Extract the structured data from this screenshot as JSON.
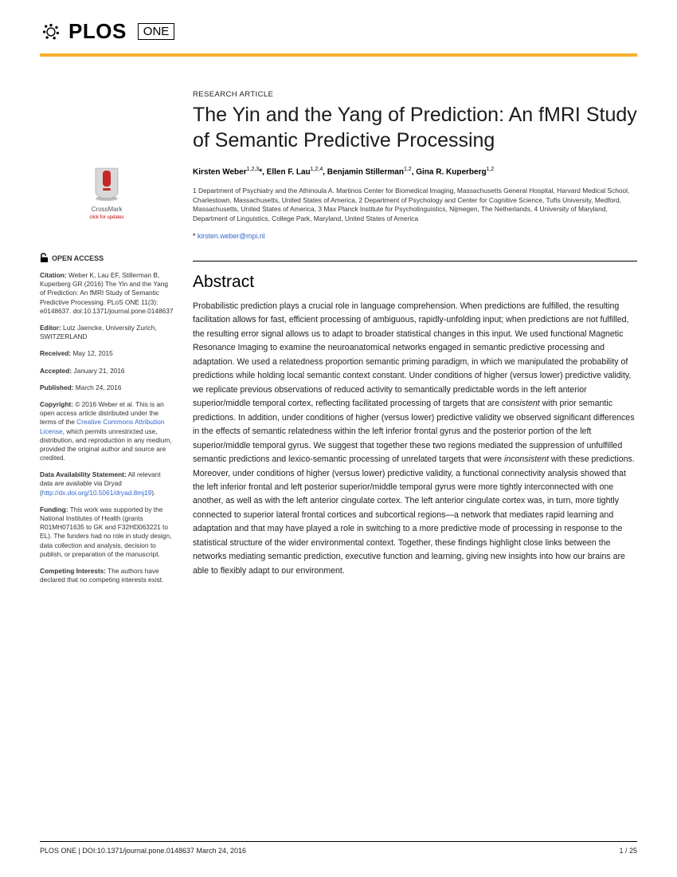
{
  "journal": {
    "publisher": "PLOS",
    "name": "ONE"
  },
  "accent_color": "#f8af2d",
  "article_type": "RESEARCH ARTICLE",
  "title": "The Yin and the Yang of Prediction: An fMRI Study of Semantic Predictive Processing",
  "authors_html": "Kirsten Weber<sup>1,2,3</sup>*, Ellen F. Lau<sup>1,2,4</sup>, Benjamin Stillerman<sup>1,2</sup>, Gina R. Kuperberg<sup>1,2</sup>",
  "affiliations": "1 Department of Psychiatry and the Athinoula A. Martinos Center for Biomedical Imaging, Massachusetts General Hospital, Harvard Medical School, Charlestown, Massachusetts, United States of America, 2 Department of Psychology and Center for Cognitive Science, Tufts University, Medford, Massachusetts, United States of America, 3 Max Planck Institute for Psycholinguistics, Nijmegen, The Netherlands, 4 University of Maryland, Department of Linguistics, College Park, Maryland, United States of America",
  "corr_prefix": "* ",
  "corr_email": "kirsten.weber@mpi.nl",
  "abstract_heading": "Abstract",
  "abstract_html": "Probabilistic prediction plays a crucial role in language comprehension. When predictions are fulfilled, the resulting facilitation allows for fast, efficient processing of ambiguous, rapidly-unfolding input; when predictions are not fulfilled, the resulting error signal allows us to adapt to broader statistical changes in this input. We used functional Magnetic Resonance Imaging to examine the neuroanatomical networks engaged in semantic predictive processing and adaptation. We used a relatedness proportion semantic priming paradigm, in which we manipulated the probability of predictions while holding local semantic context constant. Under conditions of higher (versus lower) predictive validity, we replicate previous observations of reduced activity to semantically predictable words in the left anterior superior/middle temporal cortex, reflecting facilitated processing of targets that are <em>consistent</em> with prior semantic predictions. In addition, under conditions of higher (versus lower) predictive validity we observed significant differences in the effects of semantic relatedness within the left inferior frontal gyrus and the posterior portion of the left superior/middle temporal gyrus. We suggest that together these two regions mediated the suppression of unfulfilled semantic predictions and lexico-semantic processing of unrelated targets that were <em>inconsistent</em> with these predictions. Moreover, under conditions of higher (versus lower) predictive validity, a functional connectivity analysis showed that the left inferior frontal and left posterior superior/middle temporal gyrus were more tightly interconnected with one another, as well as with the left anterior cingulate cortex. The left anterior cingulate cortex was, in turn, more tightly connected to superior lateral frontal cortices and subcortical regions—a network that mediates rapid learning and adaptation and that may have played a role in switching to a more predictive mode of processing in response to the statistical structure of the wider environmental context. Together, these findings highlight close links between the networks mediating semantic prediction, executive function and learning, giving new insights into how our brains are able to flexibly adapt to our environment.",
  "sidebar": {
    "crossmark_label": "CrossMark",
    "crossmark_sub": "click for updates",
    "open_access": "OPEN ACCESS",
    "citation_label": "Citation:",
    "citation_text": " Weber K, Lau EF, Stillerman B, Kuperberg GR (2016) The Yin and the Yang of Prediction: An fMRI Study of Semantic Predictive Processing. PLoS ONE 11(3): e0148637. doi:10.1371/journal.pone.0148637",
    "editor_label": "Editor:",
    "editor_text": " Lutz Jaencke, University Zurich, SWITZERLAND",
    "received_label": "Received:",
    "received_text": " May 12, 2015",
    "accepted_label": "Accepted:",
    "accepted_text": " January 21, 2016",
    "published_label": "Published:",
    "published_text": " March 24, 2016",
    "copyright_label": "Copyright:",
    "copyright_text_1": " © 2016 Weber et al. This is an open access article distributed under the terms of the ",
    "copyright_link": "Creative Commons Attribution License",
    "copyright_text_2": ", which permits unrestricted use, distribution, and reproduction in any medium, provided the original author and source are credited.",
    "data_label": "Data Availability Statement:",
    "data_text_1": " All relevant data are available via Dryad (",
    "data_link": "http://dx.doi.org/10.5061/dryad.8mj19",
    "data_text_2": ").",
    "funding_label": "Funding:",
    "funding_text": " This work was supported by the National Institutes of Health (grants R01MH071635 to GK and F32HD063221 to EL). The funders had no role in study design, data collection and analysis, decision to publish, or preparation of the manuscript.",
    "competing_label": "Competing Interests:",
    "competing_text": " The authors have declared that no competing interests exist."
  },
  "footer": {
    "left": "PLOS ONE | DOI:10.1371/journal.pone.0148637   March 24, 2016",
    "right": "1 / 25"
  }
}
